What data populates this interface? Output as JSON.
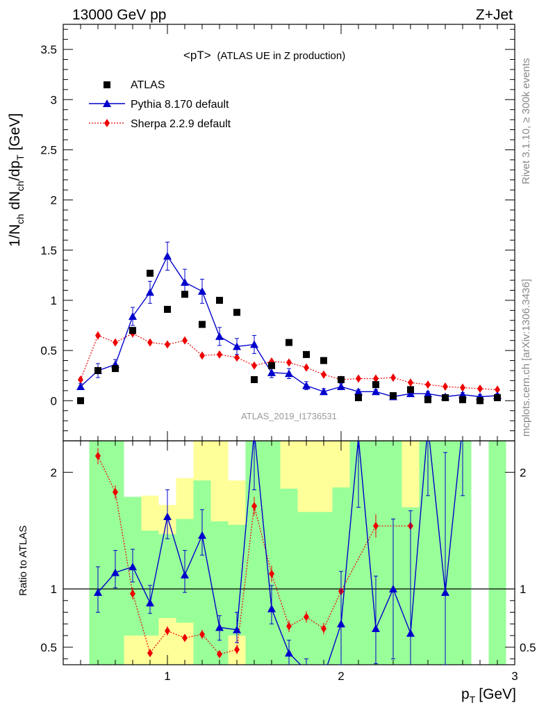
{
  "header": {
    "left_label": "13000 GeV pp",
    "right_label": "Z+Jet",
    "panel_title_main": "<pT>",
    "panel_title_sub": "(ATLAS UE in Z production)",
    "watermark": "ATLAS_2019_I1736531",
    "side_top": "Rivet 3.1.10, ≥ 300k events",
    "side_bottom": "mcplots.cern.ch [arXiv:1306.3436]"
  },
  "axes": {
    "xlabel_main": "p",
    "xlabel_sub": "T",
    "xlabel_unit": "[GeV]",
    "ylabel_main": "1/N",
    "ylabel_ch": "ch",
    "ylabel_mid": " dN",
    "ylabel_ch2": "ch",
    "ylabel_mid2": "/dp",
    "ylabel_T": "T",
    "ylabel_unit": " [GeV]",
    "ratio_ylabel": "Ratio to ATLAS"
  },
  "legend": {
    "atlas": "ATLAS",
    "pythia": "Pythia 8.170 default",
    "sherpa": "Sherpa 2.2.9 default"
  },
  "colors": {
    "atlas": "#000000",
    "pythia": "#0000cc",
    "sherpa": "#ee0000",
    "band_inner": "#99ff99",
    "band_outer": "#ffff99"
  },
  "chart_data": {
    "type": "scatter",
    "title": "<pT> (ATLAS UE in Z production)",
    "xlabel": "pT [GeV]",
    "ylabel": "1/Nch dNch/dpT [GeV]",
    "xlim": [
      0.4,
      3.0
    ],
    "ylim": [
      -0.4,
      3.75
    ],
    "ratio_ylim": [
      0.35,
      2.27
    ],
    "xticks": [
      {
        "v": 1,
        "label": "1"
      },
      {
        "v": 2,
        "label": "2"
      },
      {
        "v": 3,
        "label": "3"
      }
    ],
    "yticks": [
      {
        "v": 0,
        "label": "0"
      },
      {
        "v": 0.5,
        "label": "0.5"
      },
      {
        "v": 1,
        "label": "1"
      },
      {
        "v": 1.5,
        "label": "1.5"
      },
      {
        "v": 2,
        "label": "2"
      },
      {
        "v": 2.5,
        "label": "2.5"
      },
      {
        "v": 3,
        "label": "3"
      },
      {
        "v": 3.5,
        "label": "3.5"
      }
    ],
    "ratio_yticks": [
      {
        "v": 0.5,
        "label": "0.5"
      },
      {
        "v": 1,
        "label": "1"
      },
      {
        "v": 2,
        "label": "2"
      }
    ],
    "x": [
      0.5,
      0.6,
      0.7,
      0.8,
      0.9,
      1.0,
      1.1,
      1.2,
      1.3,
      1.4,
      1.5,
      1.6,
      1.7,
      1.8,
      1.9,
      2.0,
      2.1,
      2.2,
      2.3,
      2.4,
      2.5,
      2.6,
      2.7,
      2.8,
      2.9
    ],
    "series": [
      {
        "name": "ATLAS",
        "values": [
          0.0,
          0.3,
          0.32,
          0.7,
          1.27,
          0.91,
          1.06,
          0.76,
          1.0,
          0.88,
          0.21,
          0.35,
          0.58,
          0.46,
          0.4,
          0.21,
          0.03,
          0.16,
          0.05,
          0.11,
          0.01,
          0.03,
          0.01,
          0.0,
          0.03
        ]
      },
      {
        "name": "Pythia 8.170 default",
        "values": [
          0.14,
          0.3,
          0.36,
          0.84,
          1.08,
          1.44,
          1.18,
          1.09,
          0.64,
          0.54,
          0.56,
          0.28,
          0.27,
          0.15,
          0.09,
          0.14,
          0.09,
          0.09,
          0.04,
          0.07,
          0.07,
          0.04,
          0.06,
          0.04,
          0.05
        ],
        "errors": [
          0.03,
          0.07,
          0.05,
          0.09,
          0.11,
          0.14,
          0.13,
          0.12,
          0.09,
          0.08,
          0.09,
          0.05,
          0.05,
          0.04,
          0.03,
          0.03,
          0.02,
          0.02,
          0.02,
          0.02,
          0.02,
          0.02,
          0.02,
          0.02,
          0.02
        ]
      },
      {
        "name": "Sherpa 2.2.9 default",
        "values": [
          0.21,
          0.65,
          0.58,
          0.67,
          0.58,
          0.56,
          0.6,
          0.45,
          0.46,
          0.43,
          0.35,
          0.39,
          0.38,
          0.33,
          0.26,
          0.21,
          0.22,
          0.22,
          0.23,
          0.18,
          0.16,
          0.14,
          0.13,
          0.12,
          0.11
        ],
        "errors": [
          0.03,
          0.04,
          0.03,
          0.04,
          0.03,
          0.03,
          0.03,
          0.03,
          0.03,
          0.03,
          0.03,
          0.03,
          0.03,
          0.03,
          0.02,
          0.02,
          0.02,
          0.02,
          0.02,
          0.02,
          0.02,
          0.02,
          0.02,
          0.02,
          0.02
        ]
      }
    ],
    "ratio": {
      "x": [
        0.6,
        0.7,
        0.8,
        0.9,
        1.0,
        1.1,
        1.2,
        1.3,
        1.4,
        1.5,
        1.6,
        1.7,
        1.8,
        1.9,
        2.0,
        2.1,
        2.2,
        2.3,
        2.4,
        2.5,
        2.6,
        2.7
      ],
      "pythia": [
        0.97,
        1.14,
        1.19,
        0.88,
        1.62,
        1.12,
        1.46,
        0.67,
        0.65,
        2.35,
        0.83,
        0.45,
        0.3,
        0.25,
        0.7,
        2.3,
        0.66,
        1.0,
        0.62,
        2.4,
        0.97,
        2.4
      ],
      "pythia_err_lo": [
        0.17,
        0.13,
        0.13,
        0.09,
        0.19,
        0.15,
        0.17,
        0.11,
        0.11,
        0.5,
        0.13,
        0.11,
        0.1,
        0.1,
        0.35,
        0.6,
        0.3,
        0.6,
        0.3,
        0.6,
        0.62,
        0.6
      ],
      "pythia_err_hi": [
        0.22,
        0.19,
        0.15,
        0.15,
        0.23,
        0.21,
        0.22,
        0.1,
        0.15,
        0.5,
        0.2,
        0.11,
        0.1,
        0.1,
        0.45,
        0.6,
        0.45,
        0.6,
        1.05,
        0.6,
        1.2,
        0.6
      ],
      "sherpa_x": [
        0.6,
        0.7,
        0.8,
        0.9,
        1.0,
        1.1,
        1.2,
        1.3,
        1.4,
        1.5,
        1.6,
        1.7,
        1.8,
        1.9,
        2.0,
        2.2,
        2.4
      ],
      "sherpa": [
        2.14,
        1.83,
        0.96,
        0.45,
        0.64,
        0.58,
        0.61,
        0.44,
        0.48,
        1.71,
        1.13,
        0.68,
        0.76,
        0.66,
        0.98,
        1.54,
        1.54
      ],
      "sherpa_err": [
        0.07,
        0.06,
        0.05,
        0.03,
        0.04,
        0.03,
        0.04,
        0.03,
        0.04,
        0.08,
        0.07,
        0.05,
        0.05,
        0.05,
        0.06,
        0.1,
        0.1
      ],
      "bands": [
        {
          "x0": 0.55,
          "x1": 0.65,
          "inner": [
            0.35,
            2.27
          ],
          "outer": [
            0.35,
            2.27
          ]
        },
        {
          "x0": 0.65,
          "x1": 0.75,
          "inner": [
            0.35,
            2.27
          ],
          "outer": [
            0.35,
            2.27
          ]
        },
        {
          "x0": 0.75,
          "x1": 0.85,
          "inner": [
            0.6,
            1.79
          ],
          "outer": [
            0.35,
            1.79
          ]
        },
        {
          "x0": 0.85,
          "x1": 0.95,
          "inner": [
            0.6,
            1.5
          ],
          "outer": [
            0.35,
            1.8
          ]
        },
        {
          "x0": 0.95,
          "x1": 1.05,
          "inner": [
            0.75,
            1.47
          ],
          "outer": [
            0.35,
            1.72
          ]
        },
        {
          "x0": 1.05,
          "x1": 1.15,
          "inner": [
            0.71,
            1.6
          ],
          "outer": [
            0.35,
            1.95
          ]
        },
        {
          "x0": 1.15,
          "x1": 1.25,
          "inner": [
            0.35,
            1.93
          ],
          "outer": [
            0.35,
            2.27
          ]
        },
        {
          "x0": 1.25,
          "x1": 1.35,
          "inner": [
            0.35,
            1.58
          ],
          "outer": [
            0.35,
            2.27
          ]
        },
        {
          "x0": 1.35,
          "x1": 1.45,
          "inner": [
            0.6,
            1.55
          ],
          "outer": [
            0.35,
            1.93
          ]
        },
        {
          "x0": 1.45,
          "x1": 1.55,
          "inner": [
            0.35,
            2.27
          ],
          "outer": [
            0.35,
            2.27
          ]
        },
        {
          "x0": 1.55,
          "x1": 1.65,
          "inner": [
            0.35,
            2.27
          ],
          "outer": [
            0.35,
            2.27
          ]
        },
        {
          "x0": 1.65,
          "x1": 1.75,
          "inner": [
            0.35,
            1.86
          ],
          "outer": [
            0.35,
            2.27
          ]
        },
        {
          "x0": 1.75,
          "x1": 1.95,
          "inner": [
            0.35,
            1.66
          ],
          "outer": [
            0.35,
            2.27
          ]
        },
        {
          "x0": 1.95,
          "x1": 2.05,
          "inner": [
            0.35,
            1.87
          ],
          "outer": [
            0.35,
            2.27
          ]
        },
        {
          "x0": 2.05,
          "x1": 2.35,
          "inner": [
            0.35,
            2.27
          ],
          "outer": [
            0.35,
            2.27
          ]
        },
        {
          "x0": 2.35,
          "x1": 2.45,
          "inner": [
            0.35,
            1.7
          ],
          "outer": [
            0.35,
            2.27
          ]
        },
        {
          "x0": 2.45,
          "x1": 2.75,
          "inner": [
            0.35,
            2.27
          ],
          "outer": [
            0.35,
            2.27
          ]
        },
        {
          "x0": 2.85,
          "x1": 2.95,
          "inner": [
            0.35,
            2.27
          ],
          "outer": [
            0.35,
            2.27
          ]
        }
      ]
    }
  }
}
